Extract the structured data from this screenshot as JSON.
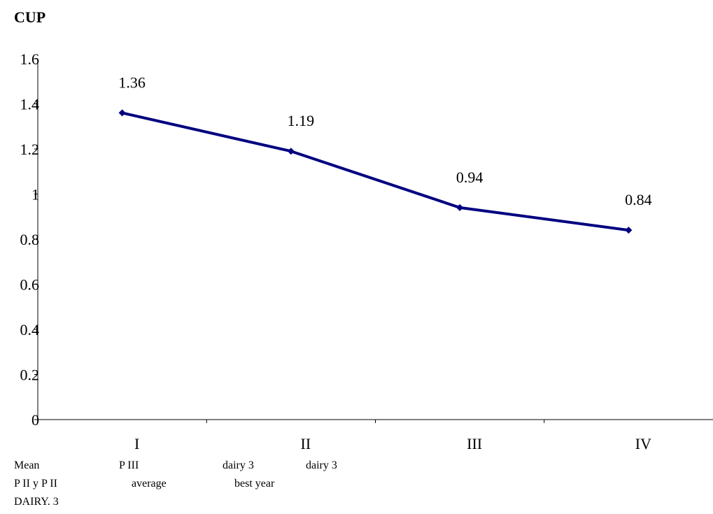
{
  "chart_data": {
    "type": "line",
    "title": "",
    "ylabel": "CUP",
    "xlabel": "",
    "categories": [
      "I",
      "II",
      "III",
      "IV"
    ],
    "series": [
      {
        "values": [
          1.36,
          1.19,
          0.94,
          0.84
        ],
        "color": "#000080"
      }
    ],
    "data_labels": [
      "1.36",
      "1.19",
      "0.94",
      "0.84"
    ],
    "ylim": [
      0,
      1.6
    ],
    "yticks": [
      {
        "value": 0,
        "label": "0"
      },
      {
        "value": 0.2,
        "label": "0.2"
      },
      {
        "value": 0.4,
        "label": "0.4"
      },
      {
        "value": 0.6,
        "label": "0.6"
      },
      {
        "value": 0.8,
        "label": "0.8"
      },
      {
        "value": 1.0,
        "label": "1"
      },
      {
        "value": 1.2,
        "label": "1.2"
      },
      {
        "value": 1.4,
        "label": "1.4"
      },
      {
        "value": 1.6,
        "label": "1.6"
      }
    ],
    "grid": false,
    "legend": "none"
  },
  "notes": {
    "n1": "Mean",
    "n2": "P III",
    "n3": "dairy 3",
    "n4": "dairy 3",
    "n5": "P II y P II",
    "n6": "average",
    "n7": "best year",
    "n8": "DAIRY. 3"
  }
}
